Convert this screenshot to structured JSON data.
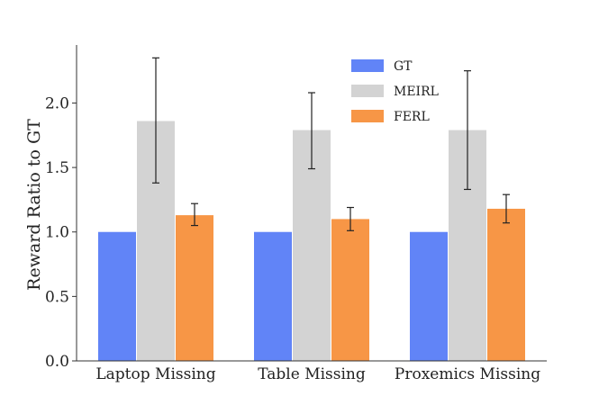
{
  "chart_data": {
    "type": "bar",
    "categories": [
      "Laptop Missing",
      "Table Missing",
      "Proxemics Missing"
    ],
    "series": [
      {
        "name": "GT",
        "values": [
          1.0,
          1.0,
          1.0
        ],
        "color": "#6184f7"
      },
      {
        "name": "MEIRL",
        "values": [
          1.86,
          1.79,
          1.79
        ],
        "error": [
          [
            1.38,
            2.35
          ],
          [
            1.49,
            2.08
          ],
          [
            1.33,
            2.25
          ]
        ],
        "color": "#d3d3d3"
      },
      {
        "name": "FERL",
        "values": [
          1.13,
          1.1,
          1.18
        ],
        "error": [
          [
            1.05,
            1.22
          ],
          [
            1.01,
            1.19
          ],
          [
            1.07,
            1.29
          ]
        ],
        "color": "#f79646"
      }
    ],
    "ylabel": "Reward Ratio to GT",
    "xlabel": "",
    "ylim": [
      0,
      2.45
    ],
    "yticks": [
      "0.0",
      "0.5",
      "1.0",
      "1.5",
      "2.0"
    ],
    "legend_position": "top-right",
    "grid": false
  }
}
